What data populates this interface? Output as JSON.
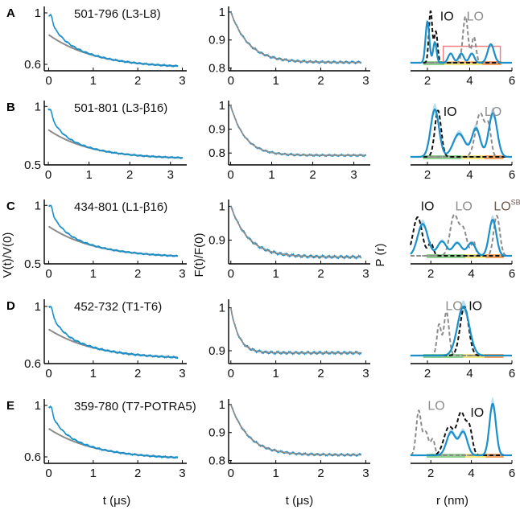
{
  "figure": {
    "xlabels": [
      "t (μs)",
      "t (μs)",
      "r (nm)"
    ],
    "ylabels": [
      "V(t)/V(0)",
      "F(t)/F(0)",
      "P (r)"
    ]
  },
  "colors": {
    "data": "#1a8fc9",
    "fit": "#8c8c8c",
    "band": "#9fd3ea",
    "io": "#111111",
    "lo": "#8c8c8c",
    "lo_sb": "#6e5a4e",
    "highlight_box": "#f08080",
    "range_green": "#8fd18f",
    "range_yellow": "#f3e67a",
    "range_orange": "#f4a460"
  },
  "chart_data": [
    {
      "panel": "A",
      "construct": "501-796 (L3-L8)",
      "raw": {
        "type": "line",
        "xlim": [
          -0.1,
          3.1
        ],
        "ylim": [
          0.55,
          1.05
        ],
        "xticks": [
          0,
          1,
          2,
          3
        ],
        "yticks": [
          0.6,
          1
        ],
        "ytick_labels": [
          "0.6",
          "1"
        ],
        "xmax": 2.9,
        "start": 1.0,
        "peak": 0.97,
        "end": 0.57,
        "fit_start": 0.83,
        "noise": 0.006
      },
      "form": {
        "type": "line",
        "xlim": [
          -0.05,
          3.1
        ],
        "ylim": [
          0.79,
          1.02
        ],
        "xticks": [
          0,
          1,
          2,
          3
        ],
        "yticks": [
          0.8,
          0.9,
          1
        ],
        "ytick_labels": [
          "0.8",
          "0.9",
          "1"
        ],
        "xmax": 2.9,
        "depth": 0.18,
        "tau": 0.4,
        "noise": 0.004
      },
      "dist": {
        "type": "line",
        "xlim": [
          1.2,
          6
        ],
        "ylim": [
          0,
          1
        ],
        "xticks": [
          2,
          4,
          6
        ],
        "xtick_labels": [
          "2",
          "4",
          "6"
        ],
        "peaks": [
          [
            2.0,
            0.09,
            0.8
          ],
          [
            2.35,
            0.08,
            0.4
          ],
          [
            3.1,
            0.12,
            0.18
          ],
          [
            3.6,
            0.12,
            0.18
          ],
          [
            4.1,
            0.12,
            0.18
          ],
          [
            5.0,
            0.15,
            0.36
          ]
        ],
        "io": [
          [
            2.15,
            0.08,
            1.0
          ],
          [
            2.4,
            0.08,
            0.6
          ]
        ],
        "lo": [
          [
            3.8,
            0.12,
            0.9
          ],
          [
            4.2,
            0.1,
            0.5
          ]
        ],
        "labels": [
          {
            "text": "IO",
            "r": 2.6,
            "y": 0.82,
            "color": "io"
          },
          {
            "text": "LO",
            "r": 3.85,
            "y": 0.82,
            "color": "lo"
          }
        ],
        "box": [
          2.75,
          5.45,
          0.01,
          0.32
        ],
        "ranges": [
          [
            1.8,
            2.8,
            "range_green"
          ],
          [
            2.8,
            3.6,
            "range_yellow"
          ],
          [
            3.6,
            4.6,
            "range_yellow"
          ],
          [
            4.6,
            5.5,
            "range_orange"
          ]
        ]
      }
    },
    {
      "panel": "B",
      "construct": "501-801 (L3-β16)",
      "raw": {
        "type": "line",
        "xlim": [
          -0.1,
          3.4
        ],
        "ylim": [
          0.5,
          1.05
        ],
        "xticks": [
          0,
          1,
          2,
          3
        ],
        "yticks": [
          0.5,
          1
        ],
        "ytick_labels": [
          "0.5",
          "1"
        ],
        "xmax": 3.3,
        "start": 1.0,
        "peak": 0.97,
        "end": 0.55,
        "fit_start": 0.8,
        "noise": 0.006
      },
      "form": {
        "type": "line",
        "xlim": [
          -0.05,
          3.4
        ],
        "ylim": [
          0.75,
          1.02
        ],
        "xticks": [
          0,
          1,
          2,
          3
        ],
        "yticks": [
          0.8,
          0.9,
          1
        ],
        "ytick_labels": [
          "0.8",
          "0.9",
          "1"
        ],
        "xmax": 3.3,
        "depth": 0.21,
        "tau": 0.35,
        "noise": 0.004
      },
      "dist": {
        "type": "line",
        "xlim": [
          1.2,
          6
        ],
        "ylim": [
          0,
          1
        ],
        "xticks": [
          2,
          4,
          6
        ],
        "xtick_labels": [
          "2",
          "4",
          "6"
        ],
        "peaks": [
          [
            2.35,
            0.2,
            0.92
          ],
          [
            3.5,
            0.28,
            0.45
          ],
          [
            4.3,
            0.2,
            0.55
          ],
          [
            5.1,
            0.2,
            0.85
          ]
        ],
        "io": [
          [
            2.5,
            0.15,
            0.9
          ]
        ],
        "lo": [
          [
            4.5,
            0.22,
            0.85
          ],
          [
            4.9,
            0.12,
            0.5
          ]
        ],
        "labels": [
          {
            "text": "IO",
            "r": 2.75,
            "y": 0.8,
            "color": "io"
          },
          {
            "text": "LO",
            "r": 4.7,
            "y": 0.8,
            "color": "lo"
          }
        ],
        "band": true,
        "ranges": [
          [
            1.8,
            2.8,
            "range_green"
          ],
          [
            2.8,
            3.6,
            "range_green"
          ],
          [
            3.6,
            4.7,
            "range_yellow"
          ],
          [
            4.7,
            5.6,
            "range_orange"
          ]
        ]
      }
    },
    {
      "panel": "C",
      "construct": "434-801 (L1-β16)",
      "raw": {
        "type": "line",
        "xlim": [
          -0.1,
          3.1
        ],
        "ylim": [
          0.5,
          1.05
        ],
        "xticks": [
          0,
          1,
          2,
          3
        ],
        "yticks": [
          0.5,
          1
        ],
        "ytick_labels": [
          "0.5",
          "1"
        ],
        "xmax": 2.9,
        "start": 1.0,
        "peak": 0.99,
        "end": 0.55,
        "fit_start": 0.82,
        "noise": 0.006
      },
      "form": {
        "type": "line",
        "xlim": [
          -0.05,
          3.1
        ],
        "ylim": [
          0.83,
          1.02
        ],
        "xticks": [
          0,
          1,
          2,
          3
        ],
        "yticks": [
          0.9,
          1
        ],
        "ytick_labels": [
          "0.9",
          "1"
        ],
        "xmax": 2.9,
        "depth": 0.15,
        "tau": 0.4,
        "noise": 0.004
      },
      "dist": {
        "type": "line",
        "xlim": [
          1.0,
          6
        ],
        "ylim": [
          0,
          1
        ],
        "xticks": [
          2,
          4,
          6
        ],
        "xtick_labels": [
          "2",
          "4",
          "6"
        ],
        "peaks": [
          [
            1.6,
            0.25,
            0.62
          ],
          [
            2.55,
            0.22,
            0.28
          ],
          [
            3.3,
            0.22,
            0.25
          ],
          [
            4.0,
            0.2,
            0.25
          ],
          [
            5.05,
            0.18,
            0.7
          ]
        ],
        "io": [
          [
            1.35,
            0.22,
            0.75
          ],
          [
            2.0,
            0.12,
            0.25
          ]
        ],
        "lo": [
          [
            3.15,
            0.2,
            0.78
          ],
          [
            3.6,
            0.18,
            0.5
          ],
          [
            4.1,
            0.1,
            0.28
          ],
          [
            5.25,
            0.15,
            0.78
          ]
        ],
        "labels": [
          {
            "text": "IO",
            "r": 1.5,
            "y": 0.88,
            "color": "io"
          },
          {
            "text": "LO",
            "r": 3.2,
            "y": 0.88,
            "color": "lo"
          },
          {
            "text": "LO",
            "r": 5.1,
            "y": 0.88,
            "color": "lo_sb",
            "sup": "SB"
          }
        ],
        "band": true,
        "ranges": [
          [
            1.8,
            2.8,
            "range_green"
          ],
          [
            2.8,
            3.7,
            "range_green"
          ],
          [
            3.7,
            4.7,
            "range_yellow"
          ],
          [
            4.7,
            5.6,
            "range_orange"
          ]
        ]
      }
    },
    {
      "panel": "D",
      "construct": "452-732 (T1-T6)",
      "raw": {
        "type": "line",
        "xlim": [
          -0.1,
          3.1
        ],
        "ylim": [
          0.6,
          1.05
        ],
        "xticks": [
          0,
          1,
          2,
          3
        ],
        "yticks": [
          0.6,
          1
        ],
        "ytick_labels": [
          "0.6",
          "1"
        ],
        "xmax": 2.9,
        "start": 1.0,
        "peak": 0.99,
        "end": 0.63,
        "fit_start": 0.84,
        "noise": 0.006
      },
      "form": {
        "type": "line",
        "xlim": [
          -0.05,
          3.1
        ],
        "ylim": [
          0.87,
          1.02
        ],
        "xticks": [
          0,
          1,
          2,
          3
        ],
        "yticks": [
          0.9,
          1
        ],
        "ytick_labels": [
          "0.9",
          "1"
        ],
        "xmax": 2.9,
        "depth": 0.105,
        "tau": 0.18,
        "noise": 0.003
      },
      "dist": {
        "type": "line",
        "xlim": [
          1.2,
          6
        ],
        "ylim": [
          0,
          1
        ],
        "xticks": [
          2,
          4,
          6
        ],
        "xtick_labels": [
          "2",
          "4",
          "6"
        ],
        "peaks": [
          [
            3.7,
            0.28,
            0.95
          ]
        ],
        "io": [
          [
            3.75,
            0.2,
            0.95
          ]
        ],
        "lo": [
          [
            2.55,
            0.1,
            0.6
          ],
          [
            2.9,
            0.12,
            0.85
          ]
        ],
        "labels": [
          {
            "text": "LO",
            "r": 2.85,
            "y": 0.88,
            "color": "lo"
          },
          {
            "text": "IO",
            "r": 3.95,
            "y": 0.88,
            "color": "io"
          }
        ],
        "band": true,
        "ranges": [
          [
            1.8,
            2.8,
            "range_green"
          ],
          [
            2.8,
            3.7,
            "range_green"
          ],
          [
            3.7,
            4.7,
            "range_yellow"
          ],
          [
            4.7,
            5.6,
            "range_orange"
          ]
        ]
      }
    },
    {
      "panel": "E",
      "construct": "359-780 (T7-POTRA5)",
      "raw": {
        "type": "line",
        "xlim": [
          -0.1,
          3.1
        ],
        "ylim": [
          0.55,
          1.05
        ],
        "xticks": [
          0,
          1,
          2,
          3
        ],
        "yticks": [
          0.6,
          1
        ],
        "ytick_labels": [
          "0.6",
          "1"
        ],
        "xmax": 2.9,
        "start": 1.0,
        "peak": 0.98,
        "end": 0.58,
        "fit_start": 0.82,
        "noise": 0.006
      },
      "form": {
        "type": "line",
        "xlim": [
          -0.05,
          3.1
        ],
        "ylim": [
          0.79,
          1.02
        ],
        "xticks": [
          0,
          1,
          2,
          3
        ],
        "yticks": [
          0.8,
          0.9,
          1
        ],
        "ytick_labels": [
          "0.8",
          "0.9",
          "1"
        ],
        "xmax": 2.9,
        "depth": 0.18,
        "tau": 0.4,
        "noise": 0.004
      },
      "dist": {
        "type": "line",
        "xlim": [
          1.0,
          6
        ],
        "ylim": [
          0,
          1
        ],
        "xticks": [
          2,
          4,
          6
        ],
        "xtick_labels": [
          "2",
          "4",
          "6"
        ],
        "peaks": [
          [
            3.0,
            0.22,
            0.45
          ],
          [
            3.6,
            0.2,
            0.45
          ],
          [
            5.05,
            0.16,
            1.0
          ]
        ],
        "io": [
          [
            2.9,
            0.25,
            0.55
          ],
          [
            3.5,
            0.2,
            0.8
          ],
          [
            3.9,
            0.15,
            0.5
          ]
        ],
        "lo": [
          [
            1.4,
            0.12,
            0.85
          ],
          [
            1.75,
            0.14,
            0.45
          ],
          [
            2.1,
            0.1,
            0.3
          ]
        ],
        "labels": [
          {
            "text": "LO",
            "r": 1.85,
            "y": 0.88,
            "color": "lo"
          },
          {
            "text": "IO",
            "r": 3.95,
            "y": 0.75,
            "color": "io"
          }
        ],
        "band": true,
        "ranges": [
          [
            1.8,
            2.8,
            "range_green"
          ],
          [
            2.8,
            3.7,
            "range_green"
          ],
          [
            3.7,
            4.7,
            "range_yellow"
          ],
          [
            4.7,
            5.6,
            "range_orange"
          ]
        ]
      }
    }
  ]
}
